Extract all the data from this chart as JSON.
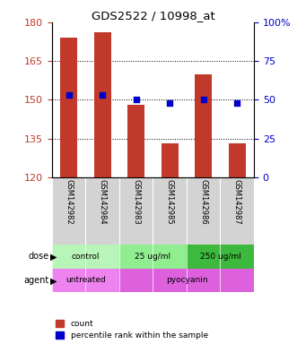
{
  "title": "GDS2522 / 10998_at",
  "samples": [
    "GSM142982",
    "GSM142984",
    "GSM142983",
    "GSM142985",
    "GSM142986",
    "GSM142987"
  ],
  "counts": [
    174,
    176,
    148,
    133,
    160,
    133
  ],
  "percentile_ranks": [
    53,
    53,
    50,
    48,
    50,
    48
  ],
  "ylim_left": [
    120,
    180
  ],
  "ylim_right": [
    0,
    100
  ],
  "yticks_left": [
    120,
    135,
    150,
    165,
    180
  ],
  "yticks_right": [
    0,
    25,
    50,
    75,
    100
  ],
  "bar_color": "#c0392b",
  "dot_color": "#0000cc",
  "bar_width": 0.5,
  "xlabels_bg": "#d3d3d3",
  "dose_info": [
    {
      "span": [
        -0.5,
        1.5
      ],
      "color": "#b8f5b8",
      "label": "control"
    },
    {
      "span": [
        1.5,
        3.5
      ],
      "color": "#90ee90",
      "label": "25 ug/ml"
    },
    {
      "span": [
        3.5,
        5.5
      ],
      "color": "#3dba3d",
      "label": "250 ug/ml"
    }
  ],
  "agent_info": [
    {
      "span": [
        -0.5,
        1.5
      ],
      "color": "#ee82ee",
      "label": "untreated"
    },
    {
      "span": [
        1.5,
        5.5
      ],
      "color": "#dd60dd",
      "label": "pyocyanin"
    }
  ],
  "side_labels": [
    "dose",
    "agent"
  ],
  "legend_items": [
    {
      "color": "#c0392b",
      "label": "count"
    },
    {
      "color": "#0000cc",
      "label": "percentile rank within the sample"
    }
  ]
}
